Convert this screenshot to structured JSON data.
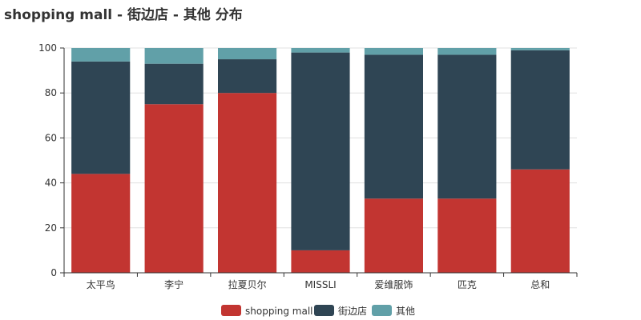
{
  "chart_data": {
    "type": "bar",
    "stacked": true,
    "title": "shopping mall - 街边店 - 其他 分布",
    "categories": [
      "太平鸟",
      "李宁",
      "拉夏贝尔",
      "MISSLI",
      "爱维服饰",
      "匹克",
      "总和"
    ],
    "series": [
      {
        "name": "shopping mall",
        "color": "#c23531",
        "values": [
          44,
          75,
          80,
          10,
          33,
          33,
          46
        ]
      },
      {
        "name": "街边店",
        "color": "#2f4554",
        "values": [
          50,
          18,
          15,
          88,
          64,
          64,
          53
        ]
      },
      {
        "name": "其他",
        "color": "#61a0a8",
        "values": [
          6,
          7,
          5,
          2,
          3,
          3,
          1
        ]
      }
    ],
    "y_ticks": [
      "0",
      "20",
      "40",
      "60",
      "80",
      "100"
    ],
    "ylim": [
      0,
      100
    ],
    "grid": true,
    "legend_position": "bottom-center"
  }
}
